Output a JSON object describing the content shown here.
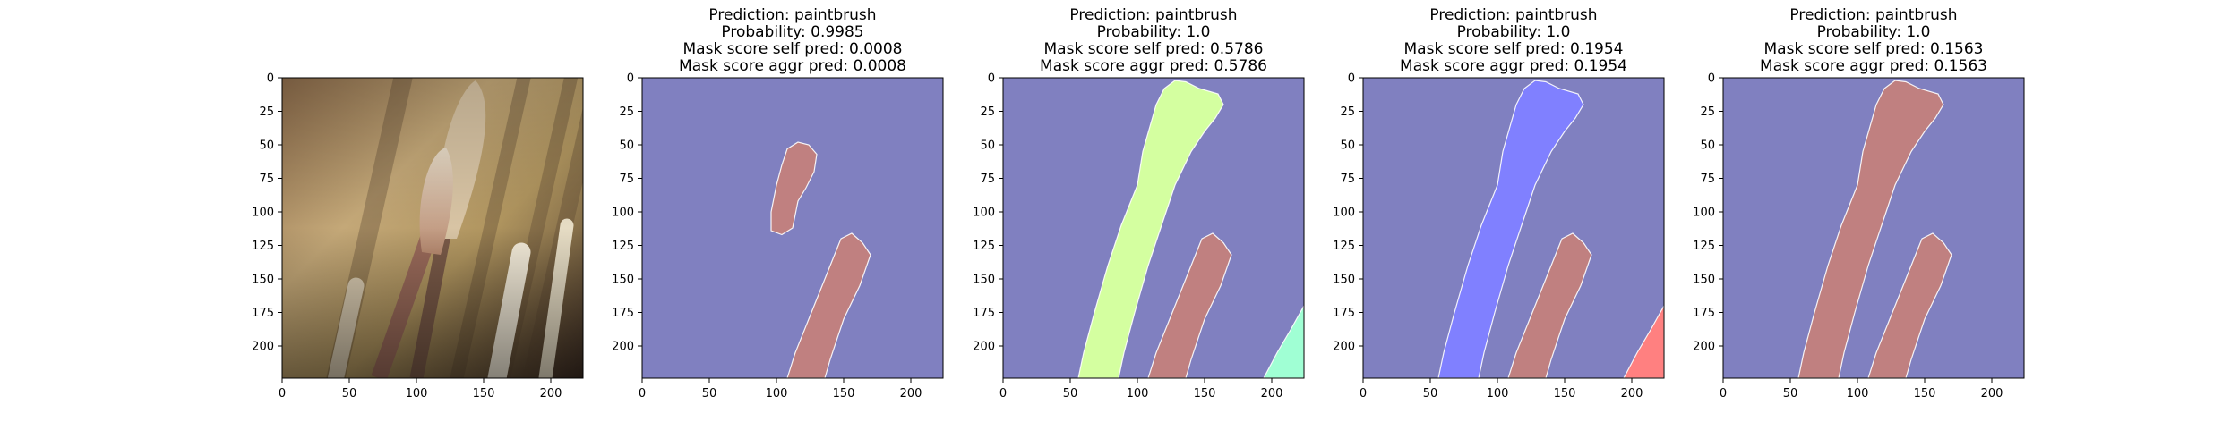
{
  "chart_data": [
    {
      "type": "image",
      "title_lines": [],
      "xticks": [
        0,
        50,
        100,
        150,
        200
      ],
      "yticks": [
        0,
        25,
        50,
        75,
        100,
        125,
        150,
        175,
        200
      ],
      "xlim": [
        0,
        224
      ],
      "ylim": [
        224,
        0
      ],
      "image_description": "photo",
      "regions": []
    },
    {
      "type": "image",
      "title_lines": [
        "Prediction: paintbrush",
        "Probability: 0.9985",
        "Mask score self pred: 0.0008",
        "Mask score aggr pred: 0.0008"
      ],
      "xticks": [
        0,
        50,
        100,
        150,
        200
      ],
      "yticks": [
        0,
        25,
        50,
        75,
        100,
        125,
        150,
        175,
        200
      ],
      "xlim": [
        0,
        224
      ],
      "ylim": [
        224,
        0
      ],
      "background_color": "#8080c0",
      "regions": [
        {
          "color": "#c08080",
          "points": [
            [
              108,
              53
            ],
            [
              116,
              48
            ],
            [
              124,
              50
            ],
            [
              130,
              57
            ],
            [
              128,
              70
            ],
            [
              122,
              82
            ],
            [
              116,
              92
            ],
            [
              112,
              112
            ],
            [
              104,
              117
            ],
            [
              96,
              114
            ],
            [
              96,
              100
            ],
            [
              100,
              80
            ],
            [
              104,
              65
            ]
          ]
        },
        {
          "color": "#c08080",
          "points": [
            [
              148,
              120
            ],
            [
              156,
              116
            ],
            [
              164,
              123
            ],
            [
              170,
              132
            ],
            [
              162,
              155
            ],
            [
              150,
              180
            ],
            [
              140,
              210
            ],
            [
              136,
              224
            ],
            [
              108,
              224
            ],
            [
              114,
              205
            ],
            [
              124,
              180
            ],
            [
              132,
              160
            ],
            [
              140,
              140
            ]
          ]
        }
      ]
    },
    {
      "type": "image",
      "title_lines": [
        "Prediction: paintbrush",
        "Probability: 1.0",
        "Mask score self pred: 0.5786",
        "Mask score aggr pred: 0.5786"
      ],
      "xticks": [
        0,
        50,
        100,
        150,
        200
      ],
      "yticks": [
        0,
        25,
        50,
        75,
        100,
        125,
        150,
        175,
        200
      ],
      "xlim": [
        0,
        224
      ],
      "ylim": [
        224,
        0
      ],
      "background_color": "#8080c0",
      "regions": [
        {
          "color": "#d4ffa0",
          "points": [
            [
              114,
              20
            ],
            [
              120,
              8
            ],
            [
              128,
              2
            ],
            [
              136,
              3
            ],
            [
              146,
              8
            ],
            [
              160,
              12
            ],
            [
              164,
              20
            ],
            [
              158,
              30
            ],
            [
              150,
              40
            ],
            [
              140,
              55
            ],
            [
              128,
              80
            ],
            [
              118,
              110
            ],
            [
              108,
              140
            ],
            [
              98,
              175
            ],
            [
              90,
              205
            ],
            [
              86,
              224
            ],
            [
              56,
              224
            ],
            [
              60,
              205
            ],
            [
              68,
              175
            ],
            [
              78,
              140
            ],
            [
              88,
              110
            ],
            [
              100,
              80
            ],
            [
              104,
              55
            ]
          ]
        },
        {
          "color": "#c08080",
          "points": [
            [
              148,
              120
            ],
            [
              156,
              116
            ],
            [
              164,
              123
            ],
            [
              170,
              132
            ],
            [
              162,
              155
            ],
            [
              150,
              180
            ],
            [
              140,
              210
            ],
            [
              136,
              224
            ],
            [
              108,
              224
            ],
            [
              114,
              205
            ],
            [
              124,
              180
            ],
            [
              132,
              160
            ],
            [
              140,
              140
            ]
          ]
        },
        {
          "color": "#a0ffd4",
          "points": [
            [
              224,
              170
            ],
            [
              224,
              224
            ],
            [
              194,
              224
            ],
            [
              204,
              205
            ],
            [
              214,
              188
            ]
          ]
        }
      ]
    },
    {
      "type": "image",
      "title_lines": [
        "Prediction: paintbrush",
        "Probability: 1.0",
        "Mask score self pred: 0.1954",
        "Mask score aggr pred: 0.1954"
      ],
      "xticks": [
        0,
        50,
        100,
        150,
        200
      ],
      "yticks": [
        0,
        25,
        50,
        75,
        100,
        125,
        150,
        175,
        200
      ],
      "xlim": [
        0,
        224
      ],
      "ylim": [
        224,
        0
      ],
      "background_color": "#8080c0",
      "regions": [
        {
          "color": "#8080ff",
          "points": [
            [
              114,
              20
            ],
            [
              120,
              8
            ],
            [
              128,
              2
            ],
            [
              136,
              3
            ],
            [
              146,
              8
            ],
            [
              160,
              12
            ],
            [
              164,
              20
            ],
            [
              158,
              30
            ],
            [
              150,
              40
            ],
            [
              140,
              55
            ],
            [
              128,
              80
            ],
            [
              118,
              110
            ],
            [
              108,
              140
            ],
            [
              98,
              175
            ],
            [
              90,
              205
            ],
            [
              86,
              224
            ],
            [
              56,
              224
            ],
            [
              60,
              205
            ],
            [
              68,
              175
            ],
            [
              78,
              140
            ],
            [
              88,
              110
            ],
            [
              100,
              80
            ],
            [
              104,
              55
            ]
          ]
        },
        {
          "color": "#c08080",
          "points": [
            [
              148,
              120
            ],
            [
              156,
              116
            ],
            [
              164,
              123
            ],
            [
              170,
              132
            ],
            [
              162,
              155
            ],
            [
              150,
              180
            ],
            [
              140,
              210
            ],
            [
              136,
              224
            ],
            [
              108,
              224
            ],
            [
              114,
              205
            ],
            [
              124,
              180
            ],
            [
              132,
              160
            ],
            [
              140,
              140
            ]
          ]
        },
        {
          "color": "#ff8080",
          "points": [
            [
              224,
              170
            ],
            [
              224,
              224
            ],
            [
              194,
              224
            ],
            [
              204,
              205
            ],
            [
              214,
              188
            ]
          ]
        }
      ]
    },
    {
      "type": "image",
      "title_lines": [
        "Prediction: paintbrush",
        "Probability: 1.0",
        "Mask score self pred: 0.1563",
        "Mask score aggr pred: 0.1563"
      ],
      "xticks": [
        0,
        50,
        100,
        150,
        200
      ],
      "yticks": [
        0,
        25,
        50,
        75,
        100,
        125,
        150,
        175,
        200
      ],
      "xlim": [
        0,
        224
      ],
      "ylim": [
        224,
        0
      ],
      "background_color": "#8080c0",
      "regions": [
        {
          "color": "#c08080",
          "points": [
            [
              114,
              20
            ],
            [
              120,
              8
            ],
            [
              128,
              2
            ],
            [
              136,
              3
            ],
            [
              146,
              8
            ],
            [
              160,
              12
            ],
            [
              164,
              20
            ],
            [
              158,
              30
            ],
            [
              150,
              40
            ],
            [
              140,
              55
            ],
            [
              128,
              80
            ],
            [
              118,
              110
            ],
            [
              108,
              140
            ],
            [
              98,
              175
            ],
            [
              90,
              205
            ],
            [
              86,
              224
            ],
            [
              56,
              224
            ],
            [
              60,
              205
            ],
            [
              68,
              175
            ],
            [
              78,
              140
            ],
            [
              88,
              110
            ],
            [
              100,
              80
            ],
            [
              104,
              55
            ]
          ]
        },
        {
          "color": "#c08080",
          "points": [
            [
              148,
              120
            ],
            [
              156,
              116
            ],
            [
              164,
              123
            ],
            [
              170,
              132
            ],
            [
              162,
              155
            ],
            [
              150,
              180
            ],
            [
              140,
              210
            ],
            [
              136,
              224
            ],
            [
              108,
              224
            ],
            [
              114,
              205
            ],
            [
              124,
              180
            ],
            [
              132,
              160
            ],
            [
              140,
              140
            ]
          ]
        }
      ]
    }
  ]
}
